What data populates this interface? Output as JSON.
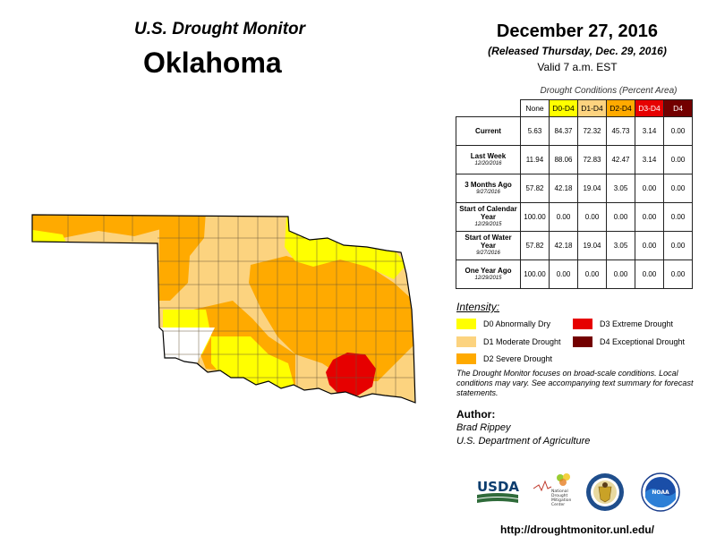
{
  "header": {
    "monitor_title": "U.S. Drought Monitor",
    "state": "Oklahoma",
    "date": "December 27, 2016",
    "released": "(Released Thursday, Dec. 29, 2016)",
    "valid": "Valid 7 a.m. EST"
  },
  "table": {
    "caption": "Drought Conditions (Percent Area)",
    "columns": [
      "None",
      "D0-D4",
      "D1-D4",
      "D2-D4",
      "D3-D4",
      "D4"
    ],
    "rows": [
      {
        "label": "Current",
        "sub": "",
        "values": [
          "5.63",
          "84.37",
          "72.32",
          "45.73",
          "3.14",
          "0.00"
        ]
      },
      {
        "label": "Last Week",
        "sub": "12/20/2016",
        "values": [
          "11.94",
          "88.06",
          "72.83",
          "42.47",
          "3.14",
          "0.00"
        ]
      },
      {
        "label": "3 Months Ago",
        "sub": "9/27/2016",
        "values": [
          "57.82",
          "42.18",
          "19.04",
          "3.05",
          "0.00",
          "0.00"
        ]
      },
      {
        "label": "Start of Calendar Year",
        "sub": "12/29/2015",
        "values": [
          "100.00",
          "0.00",
          "0.00",
          "0.00",
          "0.00",
          "0.00"
        ]
      },
      {
        "label": "Start of Water Year",
        "sub": "9/27/2016",
        "values": [
          "57.82",
          "42.18",
          "19.04",
          "3.05",
          "0.00",
          "0.00"
        ]
      },
      {
        "label": "One Year Ago",
        "sub": "12/29/2015",
        "values": [
          "100.00",
          "0.00",
          "0.00",
          "0.00",
          "0.00",
          "0.00"
        ]
      }
    ]
  },
  "legend": {
    "title": "Intensity:",
    "items": [
      {
        "label": "D0 Abnormally Dry",
        "color": "#ffff00"
      },
      {
        "label": "D1 Moderate Drought",
        "color": "#fcd37f"
      },
      {
        "label": "D2 Severe Drought",
        "color": "#ffaa00"
      },
      {
        "label": "D3 Extreme Drought",
        "color": "#e60000"
      },
      {
        "label": "D4 Exceptional Drought",
        "color": "#730000"
      }
    ]
  },
  "note": "The Drought Monitor focuses on broad-scale conditions. Local conditions may vary. See accompanying text summary for forecast statements.",
  "author": {
    "title": "Author:",
    "name": "Brad Rippey",
    "org": "U.S. Department of Agriculture"
  },
  "logos": {
    "usda": "USDA",
    "ndmc_line1": "National",
    "ndmc_line2": "Drought",
    "ndmc_line3": "Mitigation",
    "ndmc_line4": "Center",
    "noaa": "NOAA"
  },
  "url": "http://droughtmonitor.unl.edu/"
}
